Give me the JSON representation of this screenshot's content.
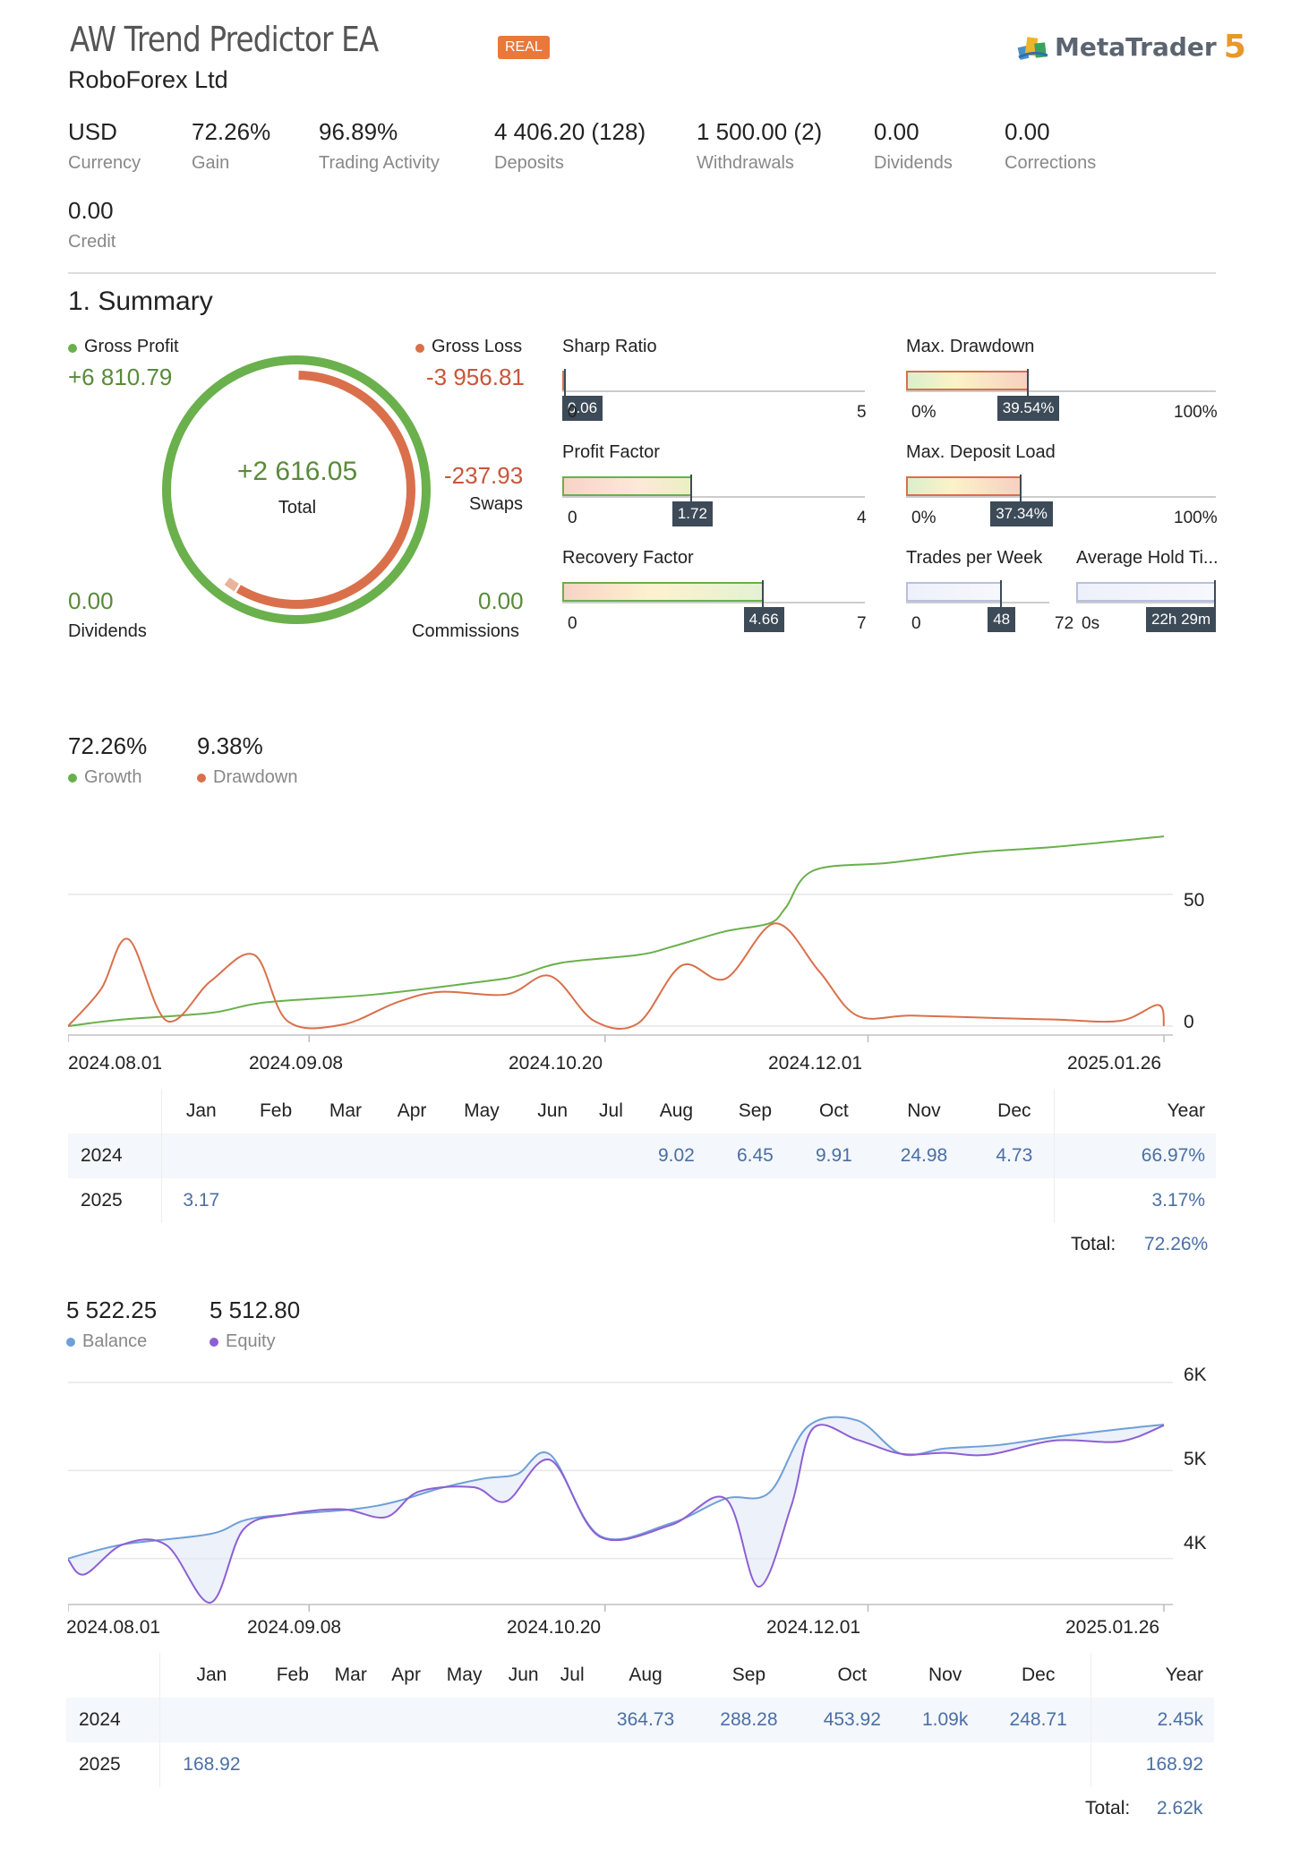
{
  "header": {
    "title": "AW Trend Predictor EA",
    "broker": "RoboForex Ltd",
    "badge": "REAL",
    "platform_name": "MetaTrader",
    "platform_version": "5"
  },
  "stats": [
    {
      "value": "USD",
      "label": "Currency"
    },
    {
      "value": "72.26%",
      "label": "Gain"
    },
    {
      "value": "96.89%",
      "label": "Trading Activity"
    },
    {
      "value": "4 406.20 (128)",
      "label": "Deposits"
    },
    {
      "value": "1 500.00 (2)",
      "label": "Withdrawals"
    },
    {
      "value": "0.00",
      "label": "Dividends"
    },
    {
      "value": "0.00",
      "label": "Corrections"
    },
    {
      "value": "0.00",
      "label": "Credit"
    }
  ],
  "summary": {
    "title": "1. Summary",
    "gross_profit_label": "Gross Profit",
    "gross_profit_value": "+6 810.79",
    "gross_loss_label": "Gross Loss",
    "gross_loss_value": "-3 956.81",
    "total_value": "+2 616.05",
    "total_label": "Total",
    "swaps_value": "-237.93",
    "swaps_label": "Swaps",
    "dividends_value": "0.00",
    "dividends_label": "Dividends",
    "commissions_value": "0.00",
    "commissions_label": "Commissions",
    "loss_fraction": 0.581,
    "colors": {
      "profit": "#6ab04c",
      "loss": "#d9704b",
      "swap": "#e9b39c"
    }
  },
  "metrics": {
    "sharp_ratio": {
      "label": "Sharp Ratio",
      "value": "0.06",
      "min": "0",
      "max": "5",
      "fraction": 0.012
    },
    "profit_factor": {
      "label": "Profit Factor",
      "value": "1.72",
      "min": "0",
      "max": "4",
      "fraction": 0.43
    },
    "recovery_factor": {
      "label": "Recovery Factor",
      "value": "4.66",
      "min": "0",
      "max": "7",
      "fraction": 0.666
    },
    "max_drawdown": {
      "label": "Max. Drawdown",
      "value": "39.54%",
      "min": "0%",
      "max": "100%",
      "fraction": 0.3954
    },
    "max_deposit_load": {
      "label": "Max. Deposit Load",
      "value": "37.34%",
      "min": "0%",
      "max": "100%",
      "fraction": 0.3734
    },
    "trades_per_week": {
      "label": "Trades per Week",
      "value": "48",
      "min": "0",
      "max": "72",
      "fraction": 0.667
    },
    "avg_hold_time": {
      "label": "Average Hold Ti...",
      "value": "22h 29m",
      "min": "0s",
      "max": "",
      "fraction": 1.0
    }
  },
  "growth_section": {
    "growth_value": "72.26%",
    "growth_label": "Growth",
    "drawdown_value": "9.38%",
    "drawdown_label": "Drawdown",
    "colors": {
      "growth": "#6ab04c",
      "drawdown": "#d9704b"
    }
  },
  "chart_data": [
    {
      "type": "line",
      "x_ticks": [
        "2024.08.01",
        "2024.09.08",
        "2024.10.20",
        "2024.12.01",
        "2025.01.26"
      ],
      "y_ticks": [
        "50",
        "0"
      ],
      "ylim": [
        0,
        70
      ],
      "series": [
        {
          "name": "Growth",
          "color": "#6ab04c",
          "points": [
            [
              0,
              0
            ],
            [
              0.05,
              2.5
            ],
            [
              0.13,
              5
            ],
            [
              0.18,
              9
            ],
            [
              0.28,
              12
            ],
            [
              0.38,
              17
            ],
            [
              0.41,
              19
            ],
            [
              0.45,
              24
            ],
            [
              0.52,
              27
            ],
            [
              0.55,
              30
            ],
            [
              0.6,
              36
            ],
            [
              0.64,
              39
            ],
            [
              0.655,
              45
            ],
            [
              0.68,
              59
            ],
            [
              0.75,
              62
            ],
            [
              0.83,
              66
            ],
            [
              0.9,
              68
            ],
            [
              1.0,
              72
            ]
          ]
        },
        {
          "name": "Drawdown",
          "color": "#d9704b",
          "points": [
            [
              0,
              0
            ],
            [
              0.03,
              14
            ],
            [
              0.055,
              33
            ],
            [
              0.09,
              2
            ],
            [
              0.13,
              17
            ],
            [
              0.17,
              27
            ],
            [
              0.2,
              2
            ],
            [
              0.25,
              0.5
            ],
            [
              0.3,
              9
            ],
            [
              0.34,
              13
            ],
            [
              0.4,
              12
            ],
            [
              0.44,
              19
            ],
            [
              0.48,
              2
            ],
            [
              0.52,
              1
            ],
            [
              0.56,
              23
            ],
            [
              0.6,
              18
            ],
            [
              0.645,
              39
            ],
            [
              0.685,
              21
            ],
            [
              0.72,
              4
            ],
            [
              0.77,
              4
            ],
            [
              0.85,
              3
            ],
            [
              0.9,
              2.5
            ],
            [
              0.96,
              2
            ],
            [
              0.995,
              8
            ],
            [
              1.0,
              0
            ]
          ]
        }
      ]
    },
    {
      "type": "line",
      "x_ticks": [
        "2024.08.01",
        "2024.09.08",
        "2024.10.20",
        "2024.12.01",
        "2025.01.26"
      ],
      "y_ticks": [
        "6K",
        "5K",
        "4K"
      ],
      "ylim": [
        3600,
        6000
      ],
      "series": [
        {
          "name": "Balance",
          "color": "#6f9fd8",
          "points": [
            [
              0,
              4000
            ],
            [
              0.05,
              4160
            ],
            [
              0.13,
              4280
            ],
            [
              0.17,
              4460
            ],
            [
              0.26,
              4560
            ],
            [
              0.3,
              4650
            ],
            [
              0.34,
              4800
            ],
            [
              0.38,
              4910
            ],
            [
              0.41,
              4960
            ],
            [
              0.44,
              5180
            ],
            [
              0.485,
              4260
            ],
            [
              0.55,
              4400
            ],
            [
              0.6,
              4680
            ],
            [
              0.64,
              4750
            ],
            [
              0.675,
              5500
            ],
            [
              0.72,
              5570
            ],
            [
              0.76,
              5190
            ],
            [
              0.8,
              5250
            ],
            [
              0.85,
              5290
            ],
            [
              0.9,
              5380
            ],
            [
              0.96,
              5470
            ],
            [
              1.0,
              5522
            ]
          ]
        },
        {
          "name": "Equity",
          "color": "#8d5fd3",
          "points": [
            [
              0,
              3990
            ],
            [
              0.015,
              3820
            ],
            [
              0.05,
              4160
            ],
            [
              0.09,
              4150
            ],
            [
              0.13,
              3500
            ],
            [
              0.16,
              4330
            ],
            [
              0.2,
              4500
            ],
            [
              0.25,
              4560
            ],
            [
              0.29,
              4470
            ],
            [
              0.32,
              4760
            ],
            [
              0.37,
              4810
            ],
            [
              0.4,
              4650
            ],
            [
              0.44,
              5120
            ],
            [
              0.485,
              4250
            ],
            [
              0.55,
              4380
            ],
            [
              0.6,
              4680
            ],
            [
              0.63,
              3680
            ],
            [
              0.66,
              4600
            ],
            [
              0.68,
              5480
            ],
            [
              0.72,
              5350
            ],
            [
              0.76,
              5190
            ],
            [
              0.8,
              5200
            ],
            [
              0.84,
              5180
            ],
            [
              0.9,
              5340
            ],
            [
              0.96,
              5330
            ],
            [
              1.0,
              5513
            ]
          ]
        }
      ]
    }
  ],
  "growth_table": {
    "months": [
      "Jan",
      "Feb",
      "Mar",
      "Apr",
      "May",
      "Jun",
      "Jul",
      "Aug",
      "Sep",
      "Oct",
      "Nov",
      "Dec"
    ],
    "year_label": "Year",
    "rows": [
      {
        "year": "2024",
        "cells": [
          "",
          "",
          "",
          "",
          "",
          "",
          "",
          "9.02",
          "6.45",
          "9.91",
          "24.98",
          "4.73"
        ],
        "total": "66.97%"
      },
      {
        "year": "2025",
        "cells": [
          "3.17",
          "",
          "",
          "",
          "",
          "",
          "",
          "",
          "",
          "",
          "",
          ""
        ],
        "total": "3.17%"
      }
    ],
    "total_label": "Total:",
    "total_value": "72.26%"
  },
  "balance_section": {
    "balance_value": "5 522.25",
    "balance_label": "Balance",
    "equity_value": "5 512.80",
    "equity_label": "Equity",
    "colors": {
      "balance": "#6f9fd8",
      "equity": "#8d5fd3"
    }
  },
  "balance_table": {
    "months": [
      "Jan",
      "Feb",
      "Mar",
      "Apr",
      "May",
      "Jun",
      "Jul",
      "Aug",
      "Sep",
      "Oct",
      "Nov",
      "Dec"
    ],
    "year_label": "Year",
    "rows": [
      {
        "year": "2024",
        "cells": [
          "",
          "",
          "",
          "",
          "",
          "",
          "",
          "364.73",
          "288.28",
          "453.92",
          "1.09k",
          "248.71"
        ],
        "total": "2.45k"
      },
      {
        "year": "2025",
        "cells": [
          "168.92",
          "",
          "",
          "",
          "",
          "",
          "",
          "",
          "",
          "",
          "",
          ""
        ],
        "total": "168.92"
      }
    ],
    "total_label": "Total:",
    "total_value": "2.62k"
  }
}
